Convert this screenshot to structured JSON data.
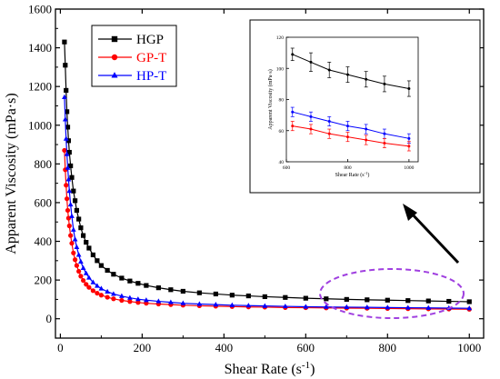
{
  "chart_data": [
    {
      "type": "line",
      "title": "",
      "xlabel": "Shear Rate (s",
      "xlabel_sup": "-1",
      "xlabel_close": ")",
      "ylabel": "Apparent Viscosity (mPa·s)",
      "xlim": [
        -12,
        1035
      ],
      "ylim": [
        -100,
        1600
      ],
      "xticks": [
        0,
        200,
        400,
        600,
        800,
        1000
      ],
      "yticks": [
        0,
        200,
        400,
        600,
        800,
        1000,
        1200,
        1400,
        1600
      ],
      "legend_position": "top-left",
      "series": [
        {
          "name": "HGP",
          "color": "#000000",
          "marker": "square",
          "x": [
            10,
            12,
            14,
            16,
            18,
            20,
            22,
            25,
            28,
            32,
            36,
            40,
            45,
            50,
            56,
            63,
            70,
            80,
            90,
            100,
            115,
            130,
            150,
            170,
            190,
            210,
            240,
            270,
            300,
            340,
            380,
            420,
            460,
            500,
            550,
            600,
            650,
            700,
            750,
            800,
            850,
            900,
            950,
            1000
          ],
          "y": [
            1430,
            1310,
            1180,
            1070,
            990,
            920,
            860,
            790,
            730,
            660,
            610,
            560,
            515,
            470,
            430,
            395,
            365,
            330,
            300,
            275,
            250,
            230,
            210,
            195,
            183,
            172,
            160,
            150,
            142,
            134,
            128,
            122,
            118,
            114,
            110,
            106,
            103,
            100,
            98,
            96,
            94,
            92,
            90,
            88
          ]
        },
        {
          "name": "GP-T",
          "color": "#ff0000",
          "marker": "circle",
          "x": [
            10,
            12,
            14,
            16,
            18,
            20,
            22,
            25,
            28,
            32,
            36,
            40,
            45,
            50,
            56,
            63,
            70,
            80,
            90,
            100,
            115,
            130,
            150,
            170,
            190,
            210,
            240,
            270,
            300,
            340,
            380,
            420,
            460,
            500,
            550,
            600,
            650,
            700,
            750,
            800,
            850,
            900,
            950,
            1000
          ],
          "y": [
            870,
            770,
            690,
            620,
            560,
            520,
            480,
            430,
            390,
            340,
            305,
            275,
            245,
            220,
            198,
            178,
            162,
            145,
            132,
            122,
            111,
            103,
            95,
            89,
            84,
            80,
            76,
            73,
            70,
            67,
            65,
            63,
            61,
            60,
            58,
            57,
            56,
            55,
            54,
            53,
            52,
            51,
            50,
            49
          ]
        },
        {
          "name": "HP-T",
          "color": "#0000ff",
          "marker": "triangle",
          "x": [
            10,
            12,
            14,
            16,
            18,
            20,
            22,
            25,
            28,
            32,
            36,
            40,
            45,
            50,
            56,
            63,
            70,
            80,
            90,
            100,
            115,
            130,
            150,
            170,
            190,
            210,
            240,
            270,
            300,
            340,
            380,
            420,
            460,
            500,
            550,
            600,
            650,
            700,
            750,
            800,
            850,
            900,
            950,
            1000
          ],
          "y": [
            1145,
            1030,
            930,
            850,
            780,
            720,
            660,
            590,
            530,
            460,
            410,
            370,
            330,
            295,
            262,
            235,
            212,
            188,
            170,
            156,
            140,
            128,
            117,
            108,
            101,
            96,
            90,
            85,
            80,
            76,
            73,
            70,
            68,
            66,
            64,
            62,
            61,
            60,
            59,
            58,
            57,
            56,
            55,
            54
          ]
        }
      ]
    },
    {
      "type": "line",
      "title": "",
      "xlabel": "Shear Rate (s",
      "xlabel_sup": "-1",
      "xlabel_close": ")",
      "ylabel": "Apparent Viscosity (mPa·s)",
      "xlim": [
        600,
        1030
      ],
      "ylim": [
        40,
        120
      ],
      "xticks": [
        600,
        800,
        1000
      ],
      "xtick_labels": [
        "600",
        "800",
        "1000"
      ],
      "yticks": [
        40,
        60,
        80,
        100,
        120
      ],
      "series": [
        {
          "name": "HGP",
          "color": "#000000",
          "x": [
            620,
            680,
            740,
            800,
            860,
            920,
            1000
          ],
          "y": [
            109,
            104,
            99,
            96,
            93,
            90,
            87
          ],
          "err": [
            4,
            6,
            5,
            5,
            5,
            5,
            5
          ]
        },
        {
          "name": "HP-T",
          "color": "#0000ff",
          "x": [
            620,
            680,
            740,
            800,
            860,
            920,
            1000
          ],
          "y": [
            72,
            69,
            66,
            63,
            61,
            58,
            55
          ],
          "err": [
            3,
            3,
            3,
            3,
            3,
            3,
            3
          ]
        },
        {
          "name": "GP-T",
          "color": "#ff0000",
          "x": [
            620,
            680,
            740,
            800,
            860,
            920,
            1000
          ],
          "y": [
            63,
            61,
            58,
            56,
            54,
            52,
            50
          ],
          "err": [
            3,
            3,
            3,
            3,
            3,
            3,
            3
          ]
        }
      ]
    }
  ]
}
